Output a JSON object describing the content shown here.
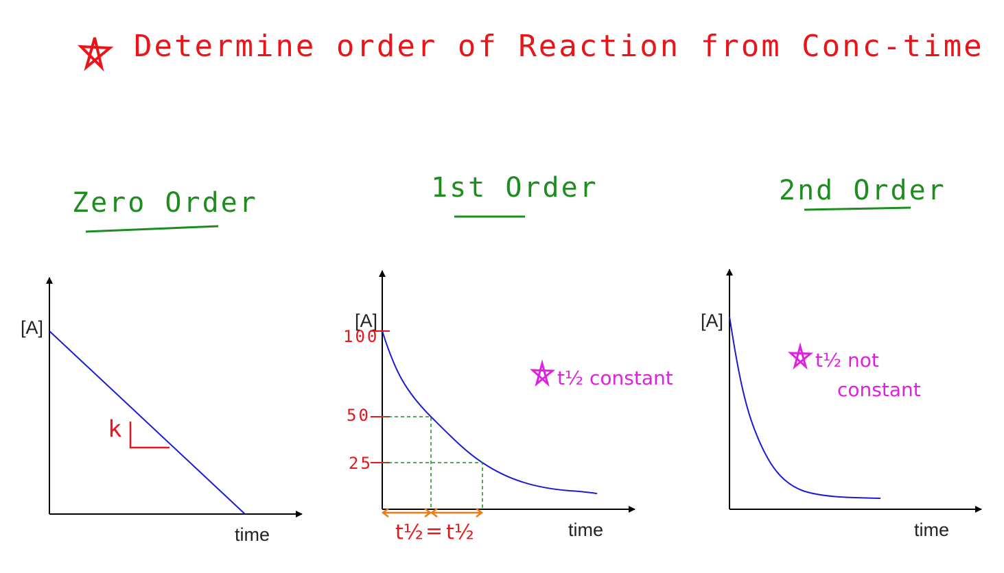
{
  "title": "Determine order of Reaction from Conc-time Graph",
  "panels": [
    {
      "heading": "Zero Order",
      "y_label": "[A]",
      "x_label": "time",
      "slope_label": "k"
    },
    {
      "heading": "1st Order",
      "y_label": "[A]",
      "x_label": "time",
      "levels": [
        100,
        50,
        25
      ],
      "half_life_labels": [
        "t½",
        "=",
        "t½"
      ],
      "note": "t½ constant"
    },
    {
      "heading": "2nd Order",
      "y_label": "[A]",
      "x_label": "time",
      "note_lines": [
        "t½ not",
        "constant"
      ]
    }
  ]
}
